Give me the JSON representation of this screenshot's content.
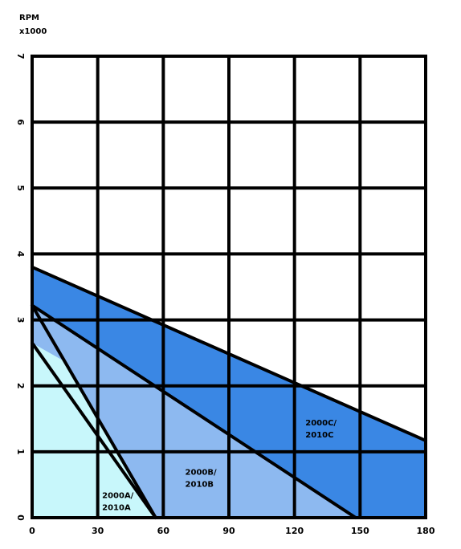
{
  "chart_data": {
    "type": "area",
    "title": "",
    "ylabel_line1": "RPM",
    "ylabel_line2": "x1000",
    "xlabel": "",
    "xlim": [
      0,
      180
    ],
    "ylim": [
      0,
      7
    ],
    "x_ticks": [
      0,
      30,
      60,
      90,
      120,
      150,
      180
    ],
    "y_ticks": [
      0,
      1,
      2,
      3,
      4,
      5,
      6,
      7
    ],
    "grid": true,
    "series": [
      {
        "name": "2000C/\n2010C",
        "label_line1": "2000C/",
        "label_line2": "2010C",
        "color": "#3a87e4",
        "points": [
          [
            0,
            3.8
          ],
          [
            180,
            1.17
          ],
          [
            180,
            0
          ],
          [
            0,
            0
          ]
        ],
        "boundary": [
          [
            0,
            3.8
          ],
          [
            180,
            1.17
          ]
        ],
        "label_at": [
          125,
          1.4
        ]
      },
      {
        "name": "2000B/\n2010B",
        "label_line1": "2000B/",
        "label_line2": "2010B",
        "color": "#8db9f0",
        "points": [
          [
            0,
            3.22
          ],
          [
            148,
            0
          ],
          [
            0,
            0
          ]
        ],
        "boundary": [
          [
            0,
            3.22
          ],
          [
            148,
            0
          ]
        ],
        "label_at": [
          70,
          0.65
        ]
      },
      {
        "name": "2000A/\n2010A",
        "label_line1": "2000A/",
        "label_line2": "2010A",
        "color": "#c8f7fb",
        "points": [
          [
            0,
            2.65
          ],
          [
            16,
            2.35
          ],
          [
            56.5,
            0
          ],
          [
            0,
            0
          ]
        ],
        "boundary": [
          [
            0,
            2.65
          ],
          [
            56.5,
            0
          ]
        ],
        "label_at": [
          32,
          0.3
        ]
      }
    ],
    "extra_lines": [
      [
        [
          0,
          3.22
        ],
        [
          56.5,
          0
        ]
      ]
    ]
  }
}
